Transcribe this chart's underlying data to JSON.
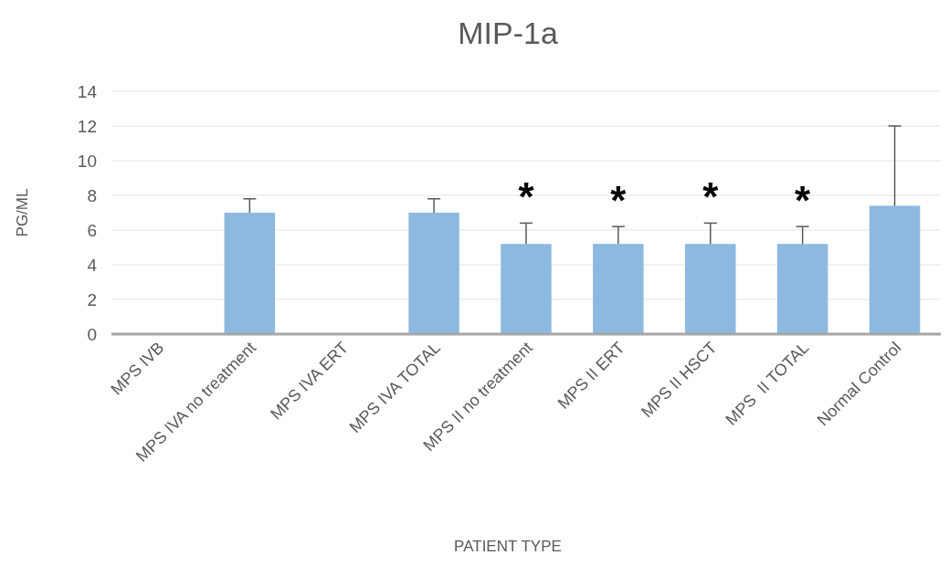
{
  "chart_data": {
    "type": "bar",
    "title": "MIP-1a",
    "xlabel": "PATIENT TYPE",
    "ylabel": "PG/ML",
    "categories": [
      "MPS IVB",
      "MPS IVA no treatment",
      "MPS IVA ERT",
      "MPS IVA TOTAL",
      "MPS II no treatment",
      "MPS II ERT",
      "MPS II HSCT",
      "MPS  II TOTAL",
      "Normal Control"
    ],
    "values": [
      0,
      7.0,
      0,
      7.0,
      5.2,
      5.2,
      5.2,
      5.2,
      7.4
    ],
    "errors": [
      null,
      [
        7.0,
        7.8
      ],
      null,
      [
        7.0,
        7.8
      ],
      [
        5.2,
        6.4
      ],
      [
        5.2,
        6.2
      ],
      [
        5.2,
        6.4
      ],
      [
        5.2,
        6.2
      ],
      [
        7.4,
        12.0
      ]
    ],
    "color": "#8db9e0",
    "ylim": [
      0,
      14
    ],
    "yticks": [
      0,
      2,
      4,
      6,
      8,
      10,
      12,
      14
    ],
    "grid": "y",
    "annotations": [
      {
        "text": "*",
        "x": "MPS II no treatment",
        "y": 6.4
      },
      {
        "text": "*",
        "x": "MPS II ERT",
        "y": 6.2
      },
      {
        "text": "*",
        "x": "MPS II HSCT",
        "y": 6.4
      },
      {
        "text": "*",
        "x": "MPS  II TOTAL",
        "y": 6.2
      }
    ]
  }
}
